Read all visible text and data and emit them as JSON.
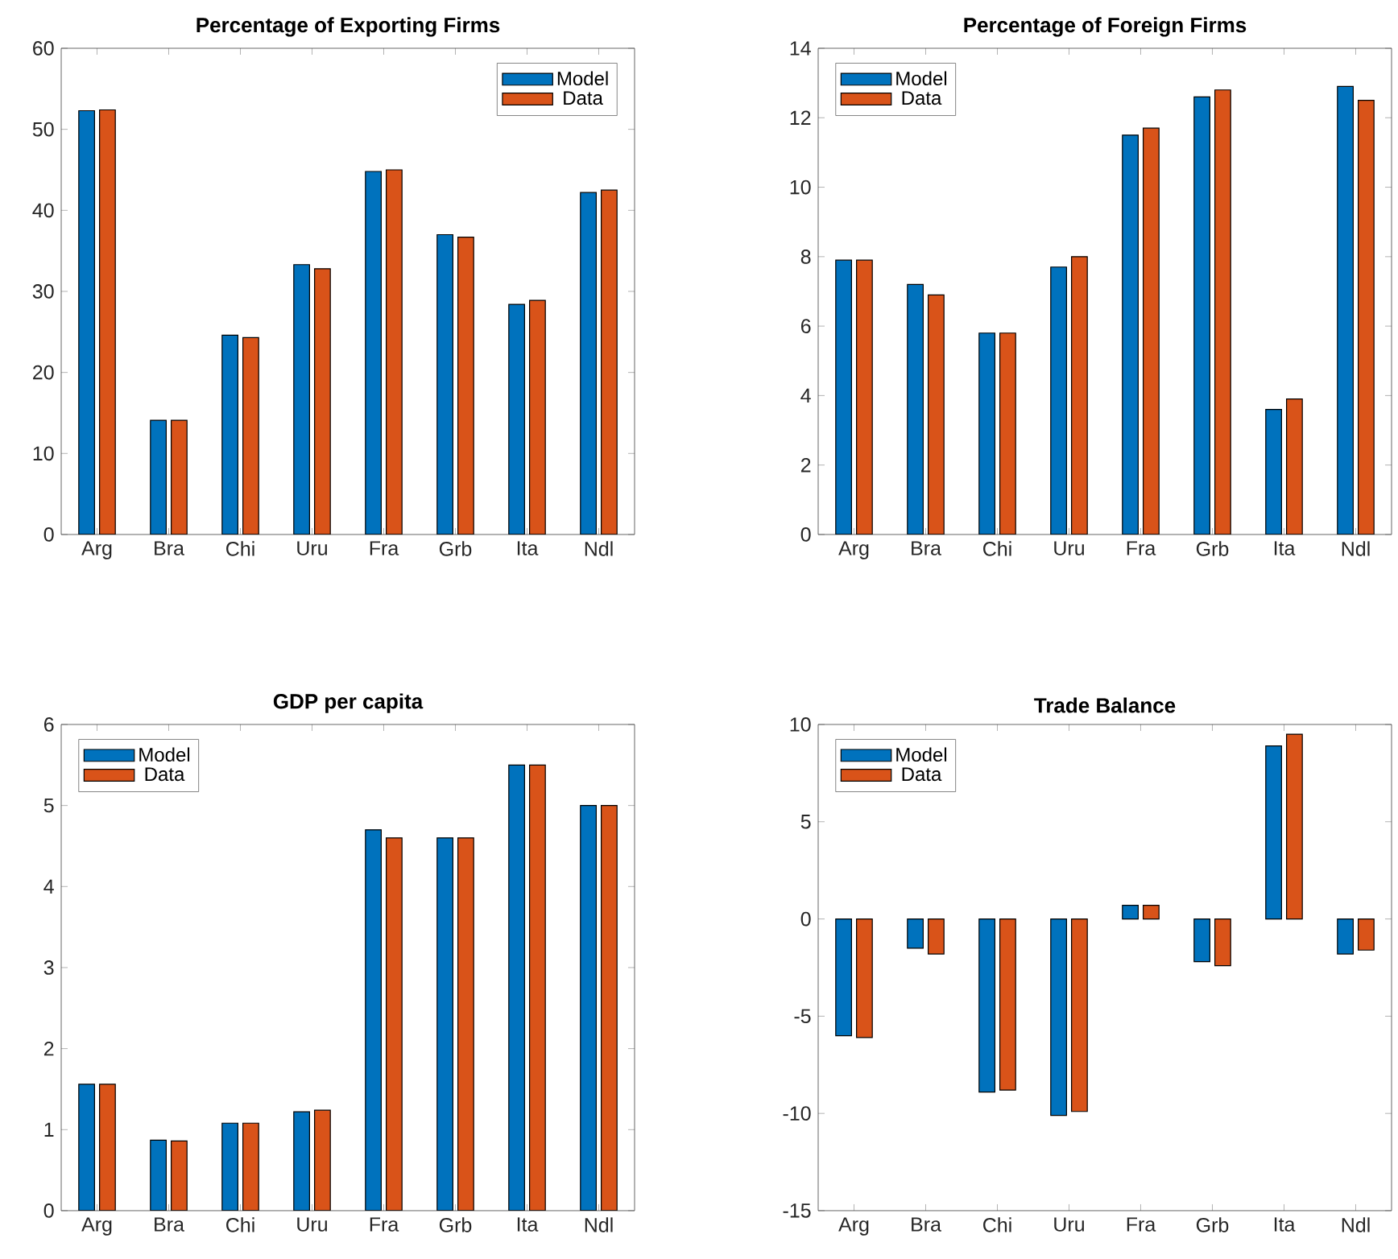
{
  "chart_data": [
    {
      "type": "bar",
      "title": "Percentage of Exporting Firms",
      "categories": [
        "Arg",
        "Bra",
        "Chi",
        "Uru",
        "Fra",
        "Grb",
        "Ita",
        "Ndl"
      ],
      "series": [
        {
          "name": "Model",
          "color": "#0072bd",
          "values": [
            52.3,
            14.1,
            24.6,
            33.3,
            44.8,
            37.0,
            28.4,
            42.2
          ]
        },
        {
          "name": "Data",
          "color": "#d95319",
          "values": [
            52.4,
            14.1,
            24.3,
            32.8,
            45.0,
            36.7,
            28.9,
            42.5
          ]
        }
      ],
      "ylim": [
        0,
        60
      ],
      "yticks": [
        0,
        10,
        20,
        30,
        40,
        50,
        60
      ],
      "legend": "top right"
    },
    {
      "type": "bar",
      "title": "Percentage of Foreign Firms",
      "categories": [
        "Arg",
        "Bra",
        "Chi",
        "Uru",
        "Fra",
        "Grb",
        "Ita",
        "Ndl"
      ],
      "series": [
        {
          "name": "Model",
          "color": "#0072bd",
          "values": [
            7.9,
            7.2,
            5.8,
            7.7,
            11.5,
            12.6,
            3.6,
            12.9
          ]
        },
        {
          "name": "Data",
          "color": "#d95319",
          "values": [
            7.9,
            6.9,
            5.8,
            8.0,
            11.7,
            12.8,
            3.9,
            12.5
          ]
        }
      ],
      "ylim": [
        0,
        14
      ],
      "yticks": [
        0,
        2,
        4,
        6,
        8,
        10,
        12,
        14
      ],
      "legend": "top left"
    },
    {
      "type": "bar",
      "title": "GDP per capita",
      "categories": [
        "Arg",
        "Bra",
        "Chi",
        "Uru",
        "Fra",
        "Grb",
        "Ita",
        "Ndl"
      ],
      "series": [
        {
          "name": "Model",
          "color": "#0072bd",
          "values": [
            1.56,
            0.87,
            1.08,
            1.22,
            4.7,
            4.6,
            5.5,
            5.0
          ]
        },
        {
          "name": "Data",
          "color": "#d95319",
          "values": [
            1.56,
            0.86,
            1.08,
            1.24,
            4.6,
            4.6,
            5.5,
            5.0
          ]
        }
      ],
      "ylim": [
        0,
        6
      ],
      "yticks": [
        0,
        1,
        2,
        3,
        4,
        5,
        6
      ],
      "legend": "top left"
    },
    {
      "type": "bar",
      "title": "Trade Balance",
      "categories": [
        "Arg",
        "Bra",
        "Chi",
        "Uru",
        "Fra",
        "Grb",
        "Ita",
        "Ndl"
      ],
      "series": [
        {
          "name": "Model",
          "color": "#0072bd",
          "values": [
            -6.0,
            -1.5,
            -8.9,
            -10.1,
            0.7,
            -2.2,
            8.9,
            -1.8
          ]
        },
        {
          "name": "Data",
          "color": "#d95319",
          "values": [
            -6.1,
            -1.8,
            -8.8,
            -9.9,
            0.7,
            -2.4,
            9.5,
            -1.6
          ]
        }
      ],
      "ylim": [
        -15,
        10
      ],
      "yticks": [
        -15,
        -10,
        -5,
        0,
        5,
        10
      ],
      "legend": "top left"
    }
  ]
}
